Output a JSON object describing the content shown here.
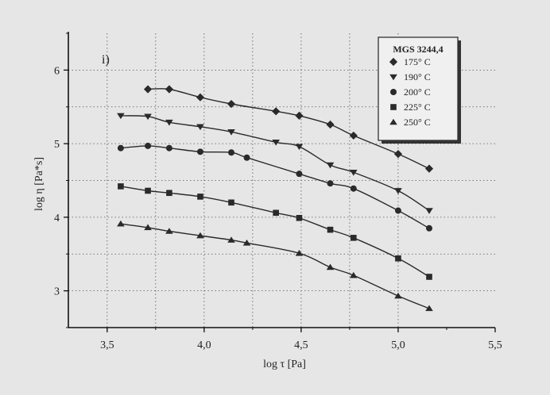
{
  "chart_data": {
    "type": "scatter",
    "panel_label": "i)",
    "xlabel": "log τ [Pa]",
    "ylabel": "log η [Pa*s]",
    "xlim": [
      3.3,
      5.5
    ],
    "ylim": [
      2.5,
      6.5
    ],
    "x_ticks": [
      3.5,
      4.0,
      4.5,
      5.0,
      5.5
    ],
    "x_tick_labels": [
      "3,5",
      "4,0",
      "4,5",
      "5,0",
      "5,5"
    ],
    "y_ticks": [
      3,
      4,
      5,
      6
    ],
    "y_tick_labels": [
      "3",
      "4",
      "5",
      "6"
    ],
    "grid": true,
    "legend_title": "MGS 3244,4",
    "legend_position": "top-right",
    "series": [
      {
        "name": "175° C",
        "marker": "diamond",
        "x": [
          3.71,
          3.82,
          3.98,
          4.14,
          4.37,
          4.49,
          4.65,
          4.77,
          5.0,
          5.16
        ],
        "y": [
          5.74,
          5.74,
          5.63,
          5.54,
          5.44,
          5.38,
          5.26,
          5.11,
          4.86,
          4.66
        ]
      },
      {
        "name": "190° C",
        "marker": "triangle-down",
        "x": [
          3.57,
          3.71,
          3.82,
          3.98,
          4.14,
          4.37,
          4.49,
          4.65,
          4.77,
          5.0,
          5.16
        ],
        "y": [
          5.38,
          5.37,
          5.29,
          5.23,
          5.16,
          5.02,
          4.96,
          4.71,
          4.61,
          4.36,
          4.09
        ]
      },
      {
        "name": "200° C",
        "marker": "circle",
        "x": [
          3.57,
          3.71,
          3.82,
          3.98,
          4.14,
          4.22,
          4.49,
          4.65,
          4.77,
          5.0,
          5.16
        ],
        "y": [
          4.94,
          4.97,
          4.94,
          4.89,
          4.88,
          4.81,
          4.59,
          4.46,
          4.39,
          4.09,
          3.85
        ]
      },
      {
        "name": "225° C",
        "marker": "square",
        "x": [
          3.57,
          3.71,
          3.82,
          3.98,
          4.14,
          4.37,
          4.49,
          4.65,
          4.77,
          5.0,
          5.16
        ],
        "y": [
          4.42,
          4.36,
          4.33,
          4.28,
          4.2,
          4.06,
          3.99,
          3.83,
          3.72,
          3.44,
          3.19
        ]
      },
      {
        "name": "250° C",
        "marker": "triangle-up",
        "x": [
          3.57,
          3.71,
          3.82,
          3.98,
          4.14,
          4.22,
          4.49,
          4.65,
          4.77,
          5.0,
          5.16
        ],
        "y": [
          3.91,
          3.86,
          3.81,
          3.75,
          3.69,
          3.65,
          3.51,
          3.32,
          3.21,
          2.93,
          2.76
        ]
      }
    ]
  }
}
